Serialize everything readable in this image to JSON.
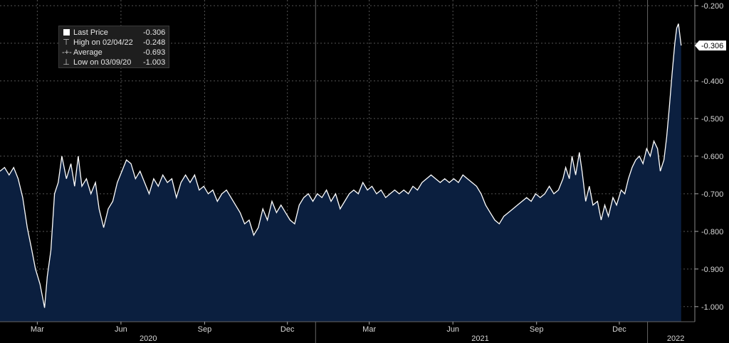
{
  "chart_data": {
    "type": "area",
    "title": "",
    "xlabel": "",
    "ylabel": "",
    "ylim": [
      -1.04,
      -0.185
    ],
    "grid": true,
    "legend_position": "top-left",
    "colors": {
      "line": "#ffffff",
      "fill": "#0b1f3f",
      "background": "#000000",
      "grid": "#555555",
      "last_badge_bg": "#ffffff",
      "last_badge_text": "#000000"
    },
    "y_ticks": [
      {
        "value": -0.2,
        "label": "-0.200"
      },
      {
        "value": -0.3,
        "label": "-0.300"
      },
      {
        "value": -0.4,
        "label": "-0.400"
      },
      {
        "value": -0.5,
        "label": "-0.500"
      },
      {
        "value": -0.6,
        "label": "-0.600"
      },
      {
        "value": -0.7,
        "label": "-0.700"
      },
      {
        "value": -0.8,
        "label": "-0.800"
      },
      {
        "value": -0.9,
        "label": "-0.900"
      },
      {
        "value": -1.0,
        "label": "-1.000"
      }
    ],
    "x_range": [
      "2020-01-20",
      "2022-02-22"
    ],
    "x_month_ticks": [
      {
        "date": "2020-03-01",
        "label": "Mar"
      },
      {
        "date": "2020-06-01",
        "label": "Jun"
      },
      {
        "date": "2020-09-01",
        "label": "Sep"
      },
      {
        "date": "2020-12-01",
        "label": "Dec"
      },
      {
        "date": "2021-03-01",
        "label": "Mar"
      },
      {
        "date": "2021-06-01",
        "label": "Jun"
      },
      {
        "date": "2021-09-01",
        "label": "Sep"
      },
      {
        "date": "2021-12-01",
        "label": "Dec"
      }
    ],
    "x_year_ticks": [
      {
        "date": "2020-07-01",
        "label": "2020"
      },
      {
        "date": "2021-07-01",
        "label": "2021"
      },
      {
        "date": "2022-02-01",
        "label": "2022"
      }
    ],
    "year_separators": [
      "2021-01-01",
      "2022-01-01"
    ],
    "series": [
      {
        "name": "Last Price",
        "points": [
          [
            "2020-01-20",
            -0.64
          ],
          [
            "2020-01-25",
            -0.63
          ],
          [
            "2020-01-30",
            -0.65
          ],
          [
            "2020-02-04",
            -0.63
          ],
          [
            "2020-02-09",
            -0.66
          ],
          [
            "2020-02-14",
            -0.71
          ],
          [
            "2020-02-19",
            -0.79
          ],
          [
            "2020-02-24",
            -0.85
          ],
          [
            "2020-02-28",
            -0.9
          ],
          [
            "2020-03-04",
            -0.94
          ],
          [
            "2020-03-09",
            -1.003
          ],
          [
            "2020-03-12",
            -0.92
          ],
          [
            "2020-03-16",
            -0.85
          ],
          [
            "2020-03-20",
            -0.7
          ],
          [
            "2020-03-24",
            -0.67
          ],
          [
            "2020-03-28",
            -0.6
          ],
          [
            "2020-04-02",
            -0.66
          ],
          [
            "2020-04-07",
            -0.62
          ],
          [
            "2020-04-11",
            -0.68
          ],
          [
            "2020-04-15",
            -0.6
          ],
          [
            "2020-04-19",
            -0.68
          ],
          [
            "2020-04-24",
            -0.66
          ],
          [
            "2020-04-29",
            -0.7
          ],
          [
            "2020-05-04",
            -0.67
          ],
          [
            "2020-05-08",
            -0.74
          ],
          [
            "2020-05-13",
            -0.79
          ],
          [
            "2020-05-18",
            -0.74
          ],
          [
            "2020-05-23",
            -0.72
          ],
          [
            "2020-05-28",
            -0.67
          ],
          [
            "2020-06-02",
            -0.64
          ],
          [
            "2020-06-07",
            -0.61
          ],
          [
            "2020-06-12",
            -0.62
          ],
          [
            "2020-06-17",
            -0.66
          ],
          [
            "2020-06-22",
            -0.64
          ],
          [
            "2020-06-27",
            -0.67
          ],
          [
            "2020-07-02",
            -0.7
          ],
          [
            "2020-07-07",
            -0.66
          ],
          [
            "2020-07-12",
            -0.68
          ],
          [
            "2020-07-17",
            -0.65
          ],
          [
            "2020-07-22",
            -0.67
          ],
          [
            "2020-07-27",
            -0.66
          ],
          [
            "2020-08-01",
            -0.71
          ],
          [
            "2020-08-06",
            -0.67
          ],
          [
            "2020-08-11",
            -0.65
          ],
          [
            "2020-08-16",
            -0.67
          ],
          [
            "2020-08-21",
            -0.65
          ],
          [
            "2020-08-26",
            -0.69
          ],
          [
            "2020-08-31",
            -0.68
          ],
          [
            "2020-09-05",
            -0.7
          ],
          [
            "2020-09-10",
            -0.69
          ],
          [
            "2020-09-15",
            -0.72
          ],
          [
            "2020-09-20",
            -0.7
          ],
          [
            "2020-09-25",
            -0.69
          ],
          [
            "2020-09-30",
            -0.71
          ],
          [
            "2020-10-05",
            -0.73
          ],
          [
            "2020-10-10",
            -0.75
          ],
          [
            "2020-10-15",
            -0.78
          ],
          [
            "2020-10-20",
            -0.77
          ],
          [
            "2020-10-25",
            -0.81
          ],
          [
            "2020-10-30",
            -0.79
          ],
          [
            "2020-11-04",
            -0.74
          ],
          [
            "2020-11-09",
            -0.77
          ],
          [
            "2020-11-14",
            -0.72
          ],
          [
            "2020-11-19",
            -0.75
          ],
          [
            "2020-11-24",
            -0.73
          ],
          [
            "2020-11-29",
            -0.75
          ],
          [
            "2020-12-04",
            -0.77
          ],
          [
            "2020-12-09",
            -0.78
          ],
          [
            "2020-12-14",
            -0.73
          ],
          [
            "2020-12-19",
            -0.71
          ],
          [
            "2020-12-24",
            -0.7
          ],
          [
            "2020-12-29",
            -0.72
          ],
          [
            "2021-01-03",
            -0.7
          ],
          [
            "2021-01-08",
            -0.71
          ],
          [
            "2021-01-13",
            -0.69
          ],
          [
            "2021-01-18",
            -0.72
          ],
          [
            "2021-01-23",
            -0.7
          ],
          [
            "2021-01-28",
            -0.74
          ],
          [
            "2021-02-02",
            -0.72
          ],
          [
            "2021-02-07",
            -0.7
          ],
          [
            "2021-02-12",
            -0.69
          ],
          [
            "2021-02-17",
            -0.7
          ],
          [
            "2021-02-22",
            -0.67
          ],
          [
            "2021-02-27",
            -0.69
          ],
          [
            "2021-03-04",
            -0.68
          ],
          [
            "2021-03-09",
            -0.7
          ],
          [
            "2021-03-14",
            -0.69
          ],
          [
            "2021-03-19",
            -0.71
          ],
          [
            "2021-03-24",
            -0.7
          ],
          [
            "2021-03-29",
            -0.69
          ],
          [
            "2021-04-03",
            -0.7
          ],
          [
            "2021-04-08",
            -0.69
          ],
          [
            "2021-04-13",
            -0.7
          ],
          [
            "2021-04-18",
            -0.68
          ],
          [
            "2021-04-23",
            -0.69
          ],
          [
            "2021-04-28",
            -0.67
          ],
          [
            "2021-05-03",
            -0.66
          ],
          [
            "2021-05-08",
            -0.65
          ],
          [
            "2021-05-13",
            -0.66
          ],
          [
            "2021-05-18",
            -0.67
          ],
          [
            "2021-05-23",
            -0.66
          ],
          [
            "2021-05-28",
            -0.67
          ],
          [
            "2021-06-02",
            -0.66
          ],
          [
            "2021-06-07",
            -0.67
          ],
          [
            "2021-06-12",
            -0.65
          ],
          [
            "2021-06-17",
            -0.66
          ],
          [
            "2021-06-22",
            -0.67
          ],
          [
            "2021-06-27",
            -0.68
          ],
          [
            "2021-07-02",
            -0.7
          ],
          [
            "2021-07-07",
            -0.73
          ],
          [
            "2021-07-12",
            -0.75
          ],
          [
            "2021-07-17",
            -0.77
          ],
          [
            "2021-07-22",
            -0.78
          ],
          [
            "2021-07-27",
            -0.76
          ],
          [
            "2021-08-01",
            -0.75
          ],
          [
            "2021-08-06",
            -0.74
          ],
          [
            "2021-08-11",
            -0.73
          ],
          [
            "2021-08-16",
            -0.72
          ],
          [
            "2021-08-21",
            -0.71
          ],
          [
            "2021-08-26",
            -0.72
          ],
          [
            "2021-08-31",
            -0.7
          ],
          [
            "2021-09-05",
            -0.71
          ],
          [
            "2021-09-10",
            -0.7
          ],
          [
            "2021-09-15",
            -0.68
          ],
          [
            "2021-09-20",
            -0.7
          ],
          [
            "2021-09-25",
            -0.69
          ],
          [
            "2021-09-30",
            -0.66
          ],
          [
            "2021-10-03",
            -0.63
          ],
          [
            "2021-10-07",
            -0.66
          ],
          [
            "2021-10-10",
            -0.6
          ],
          [
            "2021-10-14",
            -0.65
          ],
          [
            "2021-10-18",
            -0.59
          ],
          [
            "2021-10-21",
            -0.64
          ],
          [
            "2021-10-25",
            -0.72
          ],
          [
            "2021-10-29",
            -0.68
          ],
          [
            "2021-11-02",
            -0.73
          ],
          [
            "2021-11-07",
            -0.72
          ],
          [
            "2021-11-11",
            -0.77
          ],
          [
            "2021-11-15",
            -0.73
          ],
          [
            "2021-11-19",
            -0.76
          ],
          [
            "2021-11-24",
            -0.71
          ],
          [
            "2021-11-28",
            -0.73
          ],
          [
            "2021-12-03",
            -0.69
          ],
          [
            "2021-12-07",
            -0.7
          ],
          [
            "2021-12-11",
            -0.66
          ],
          [
            "2021-12-15",
            -0.63
          ],
          [
            "2021-12-19",
            -0.61
          ],
          [
            "2021-12-23",
            -0.6
          ],
          [
            "2021-12-27",
            -0.62
          ],
          [
            "2021-12-31",
            -0.58
          ],
          [
            "2022-01-04",
            -0.6
          ],
          [
            "2022-01-08",
            -0.56
          ],
          [
            "2022-01-12",
            -0.58
          ],
          [
            "2022-01-15",
            -0.64
          ],
          [
            "2022-01-19",
            -0.61
          ],
          [
            "2022-01-22",
            -0.55
          ],
          [
            "2022-01-25",
            -0.47
          ],
          [
            "2022-01-28",
            -0.38
          ],
          [
            "2022-01-31",
            -0.3
          ],
          [
            "2022-02-02",
            -0.26
          ],
          [
            "2022-02-04",
            -0.248
          ],
          [
            "2022-02-07",
            -0.306
          ]
        ]
      }
    ],
    "last_price_badge": "-0.306",
    "legend": {
      "last": {
        "label": "Last Price",
        "value": "-0.306"
      },
      "high": {
        "label": "High on 02/04/22",
        "value": "-0.248"
      },
      "avg": {
        "label": "Average",
        "value": "-0.693"
      },
      "low": {
        "label": "Low on 03/09/20",
        "value": "-1.003"
      }
    }
  }
}
